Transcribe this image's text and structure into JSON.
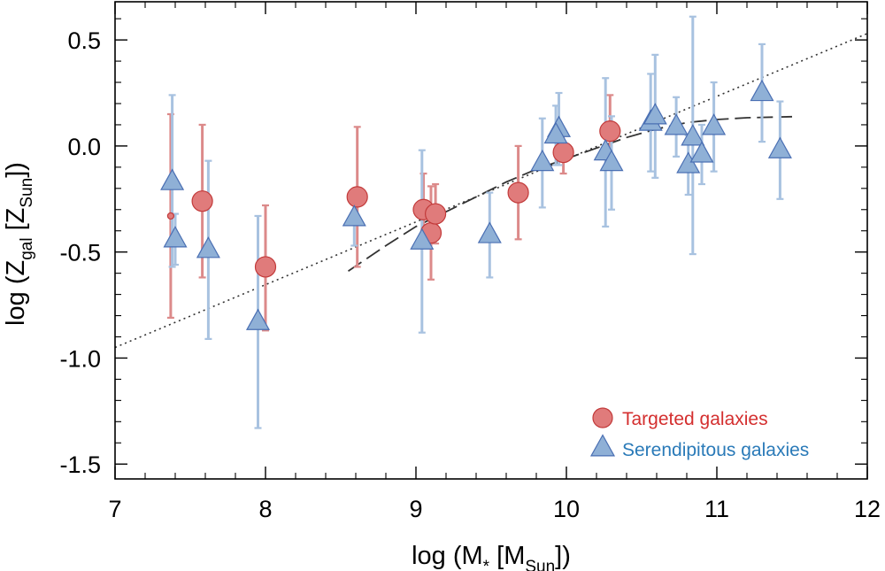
{
  "chart_data": {
    "type": "scatter",
    "xlabel": {
      "pre": "log (M",
      "sub1": "*",
      "mid": " [M",
      "sub2": "Sun",
      "post": "])"
    },
    "ylabel": {
      "pre": "log (Z",
      "sub1": "gal",
      "mid": " [Z",
      "sub2": "Sun",
      "post": "])"
    },
    "xlim": [
      7,
      12
    ],
    "ylim": [
      -1.57,
      0.68
    ],
    "xticks": [
      7,
      8,
      9,
      10,
      11,
      12
    ],
    "xtick_labels": [
      "7",
      "8",
      "9",
      "10",
      "11",
      "12"
    ],
    "yticks": [
      0.5,
      0.0,
      -0.5,
      -1.0,
      -1.5
    ],
    "ytick_labels": [
      "0.5",
      "0.0",
      "-0.5",
      "-1.0",
      "-1.5"
    ],
    "colors": {
      "targeted_fill": "#e07b7b",
      "targeted_edge": "#c23a3a",
      "targeted_err": "#dc8a8a",
      "targeted_text": "#d42f2f",
      "serendip_fill": "#8fb0d6",
      "serendip_edge": "#4a6fb3",
      "serendip_err": "#a8c2e0",
      "serendip_text": "#2a7ab8",
      "trend": "#333333"
    },
    "legend": {
      "position": "bottom-right",
      "targeted_label": "Targeted galaxies",
      "serendipitous_label": "Serendipitous galaxies"
    },
    "series": [
      {
        "name": "Targeted galaxies",
        "marker": "circle",
        "points": [
          {
            "x": 7.37,
            "y": -0.33,
            "yerr_low": 0.48,
            "yerr_high": 0.48,
            "small": true
          },
          {
            "x": 7.58,
            "y": -0.26,
            "yerr_low": 0.36,
            "yerr_high": 0.36
          },
          {
            "x": 8.0,
            "y": -0.57,
            "yerr_low": 0.3,
            "yerr_high": 0.29
          },
          {
            "x": 8.61,
            "y": -0.24,
            "yerr_low": 0.33,
            "yerr_high": 0.33
          },
          {
            "x": 9.05,
            "y": -0.3,
            "yerr_low": 0.17,
            "yerr_high": 0.17
          },
          {
            "x": 9.1,
            "y": -0.41,
            "yerr_low": 0.22,
            "yerr_high": 0.22
          },
          {
            "x": 9.13,
            "y": -0.32,
            "yerr_low": 0.14,
            "yerr_high": 0.14
          },
          {
            "x": 9.68,
            "y": -0.22,
            "yerr_low": 0.22,
            "yerr_high": 0.22
          },
          {
            "x": 9.98,
            "y": -0.03,
            "yerr_low": 0.1,
            "yerr_high": 0.1
          },
          {
            "x": 10.29,
            "y": 0.07,
            "yerr_low": 0.17,
            "yerr_high": 0.17
          }
        ]
      },
      {
        "name": "Serendipitous galaxies",
        "marker": "triangle",
        "points": [
          {
            "x": 7.38,
            "y": -0.17,
            "yerr_low": 0.4,
            "yerr_high": 0.41
          },
          {
            "x": 7.4,
            "y": -0.44,
            "yerr_low": 0.12,
            "yerr_high": 0.12
          },
          {
            "x": 7.62,
            "y": -0.49,
            "yerr_low": 0.42,
            "yerr_high": 0.42
          },
          {
            "x": 7.95,
            "y": -0.83,
            "yerr_low": 0.5,
            "yerr_high": 0.5
          },
          {
            "x": 8.59,
            "y": -0.34,
            "yerr_low": 0.13,
            "yerr_high": 0.13
          },
          {
            "x": 9.04,
            "y": -0.45,
            "yerr_low": 0.43,
            "yerr_high": 0.43
          },
          {
            "x": 9.49,
            "y": -0.42,
            "yerr_low": 0.2,
            "yerr_high": 0.2
          },
          {
            "x": 9.84,
            "y": -0.08,
            "yerr_low": 0.21,
            "yerr_high": 0.21
          },
          {
            "x": 9.95,
            "y": 0.08,
            "yerr_low": 0.17,
            "yerr_high": 0.17
          },
          {
            "x": 9.93,
            "y": 0.05,
            "yerr_low": 0.14,
            "yerr_high": 0.14
          },
          {
            "x": 10.26,
            "y": -0.03,
            "yerr_low": 0.35,
            "yerr_high": 0.35
          },
          {
            "x": 10.3,
            "y": -0.08,
            "yerr_low": 0.22,
            "yerr_high": 0.22
          },
          {
            "x": 10.56,
            "y": 0.11,
            "yerr_low": 0.23,
            "yerr_high": 0.23
          },
          {
            "x": 10.59,
            "y": 0.14,
            "yerr_low": 0.29,
            "yerr_high": 0.29
          },
          {
            "x": 10.73,
            "y": 0.09,
            "yerr_low": 0.14,
            "yerr_high": 0.14
          },
          {
            "x": 10.81,
            "y": -0.09,
            "yerr_low": 0.14,
            "yerr_high": 0.14
          },
          {
            "x": 10.84,
            "y": 0.04,
            "yerr_low": 0.55,
            "yerr_high": 0.57
          },
          {
            "x": 10.9,
            "y": -0.04,
            "yerr_low": 0.14,
            "yerr_high": 0.14
          },
          {
            "x": 10.98,
            "y": 0.09,
            "yerr_low": 0.21,
            "yerr_high": 0.21
          },
          {
            "x": 11.3,
            "y": 0.25,
            "yerr_low": 0.23,
            "yerr_high": 0.23
          },
          {
            "x": 11.42,
            "y": -0.02,
            "yerr_low": 0.23,
            "yerr_high": 0.23
          }
        ]
      }
    ],
    "lines": [
      {
        "name": "linear-fit",
        "style": "dotted",
        "x": [
          7,
          12
        ],
        "y": [
          -0.95,
          0.53
        ]
      },
      {
        "name": "model-curve",
        "style": "dashed",
        "x": [
          8.55,
          8.8,
          9.0,
          9.2,
          9.4,
          9.6,
          9.8,
          10.0,
          10.2,
          10.4,
          10.6,
          10.8,
          11.0,
          11.2,
          11.5
        ],
        "y": [
          -0.59,
          -0.47,
          -0.38,
          -0.31,
          -0.24,
          -0.17,
          -0.11,
          -0.06,
          -0.01,
          0.04,
          0.08,
          0.11,
          0.125,
          0.133,
          0.138
        ]
      }
    ]
  }
}
